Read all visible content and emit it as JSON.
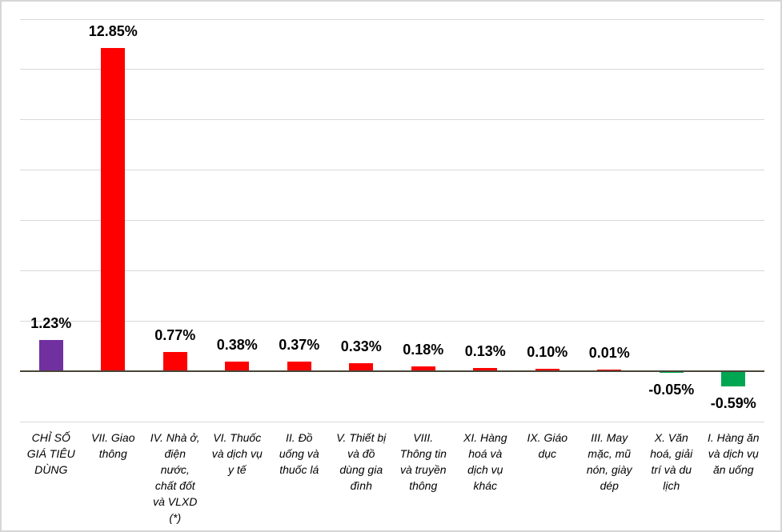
{
  "chart_data": {
    "type": "bar",
    "title": "",
    "xlabel": "",
    "ylabel": "",
    "legend": "none",
    "grid": true,
    "ylim": [
      -2,
      14
    ],
    "gridline_step": 2,
    "categories": [
      "CHỈ SỐ GIÁ TIÊU DÙNG",
      "VII. Giao thông",
      "IV. Nhà ở, điện nước, chất đốt và VLXD (*)",
      "VI. Thuốc và dịch vụ y tế",
      "II. Đồ uống và thuốc lá",
      "V. Thiết bị và đồ dùng gia đình",
      "VIII. Thông tin và truyền thông",
      "XI. Hàng hoá và dịch vụ khác",
      "IX. Giáo dục",
      "III. May mặc, mũ nón, giày dép",
      "X. Văn hoá, giải trí và du lịch",
      "I. Hàng ăn và dịch vụ ăn uống"
    ],
    "category_label_lines": [
      "CHỈ SỐ\nGIÁ TIÊU\nDÙNG",
      "VII. Giao\nthông",
      "IV. Nhà ở,\nđiện\nnước,\nchất đốt\nvà VLXD\n(*)",
      "VI. Thuốc\nvà dịch vụ\ny tế",
      "II. Đồ\nuống và\nthuốc lá",
      "V. Thiết bị\nvà đồ\ndùng gia\nđình",
      "VIII.\nThông tin\nvà truyền\nthông",
      "XI. Hàng\nhoá và\ndịch vụ\nkhác",
      "IX. Giáo\ndục",
      "III. May\nmặc, mũ\nnón, giày\ndép",
      "X. Văn\nhoá, giải\ntrí và du\nlịch",
      "I. Hàng ăn\nvà dịch vụ\năn uống"
    ],
    "values": [
      1.23,
      12.85,
      0.77,
      0.38,
      0.37,
      0.33,
      0.18,
      0.13,
      0.1,
      0.01,
      -0.05,
      -0.59
    ],
    "value_labels": [
      "1.23%",
      "12.85%",
      "0.77%",
      "0.38%",
      "0.37%",
      "0.33%",
      "0.18%",
      "0.13%",
      "0.10%",
      "0.01%",
      "-0.05%",
      "-0.59%"
    ],
    "bar_colors": [
      "#7030A0",
      "#FF0000",
      "#FF0000",
      "#FF0000",
      "#FF0000",
      "#FF0000",
      "#FF0000",
      "#FF0000",
      "#FF0000",
      "#FF0000",
      "#00A651",
      "#00A651"
    ],
    "colors": {
      "grid": "#D9D9D9",
      "axis": "#4A4539",
      "background": "#FFFFFF",
      "border": "#D6D6D6",
      "text": "#000000"
    }
  }
}
